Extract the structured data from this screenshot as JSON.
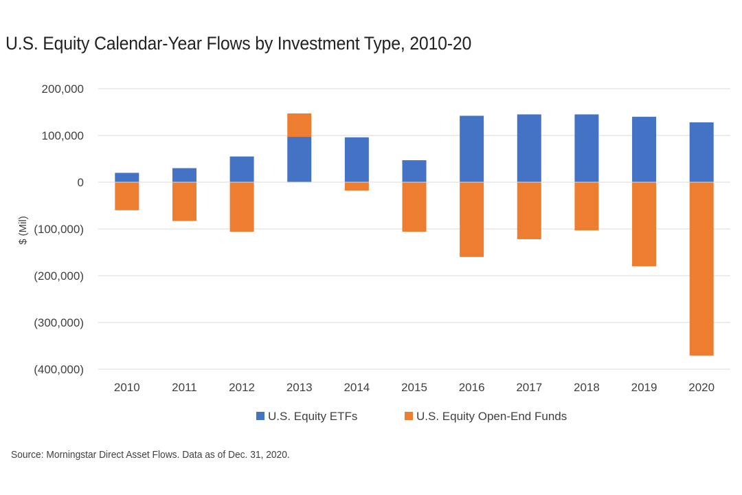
{
  "title": "U.S. Equity Calendar-Year Flows by Investment Type, 2010-20",
  "source": "Source: Morningstar Direct Asset Flows. Data as of Dec. 31, 2020.",
  "chart_data": {
    "type": "bar",
    "stacked": true,
    "title": "U.S. Equity Calendar-Year Flows by Investment Type, 2010-20",
    "xlabel": "",
    "ylabel": "$ (Mil)",
    "ylim": [
      -400000,
      200000
    ],
    "yticks": [
      200000,
      100000,
      0,
      -100000,
      -200000,
      -300000,
      -400000
    ],
    "ytick_labels": [
      "200,000",
      "100,000",
      "0",
      "(100,000)",
      "(200,000)",
      "(300,000)",
      "(400,000)"
    ],
    "grid": "horizontal",
    "legend_position": "bottom",
    "categories": [
      "2010",
      "2011",
      "2012",
      "2013",
      "2014",
      "2015",
      "2016",
      "2017",
      "2018",
      "2019",
      "2020"
    ],
    "series": [
      {
        "name": "U.S. Equity ETFs",
        "color": "#4472C4",
        "values": [
          20000,
          30000,
          55000,
          97000,
          96000,
          47000,
          142000,
          145000,
          145000,
          140000,
          128000
        ]
      },
      {
        "name": "U.S. Equity Open-End Funds",
        "color": "#ED7D31",
        "values": [
          -60000,
          -83000,
          -106000,
          50000,
          -18000,
          -106000,
          -160000,
          -122000,
          -103000,
          -180000,
          -371000
        ]
      }
    ]
  }
}
